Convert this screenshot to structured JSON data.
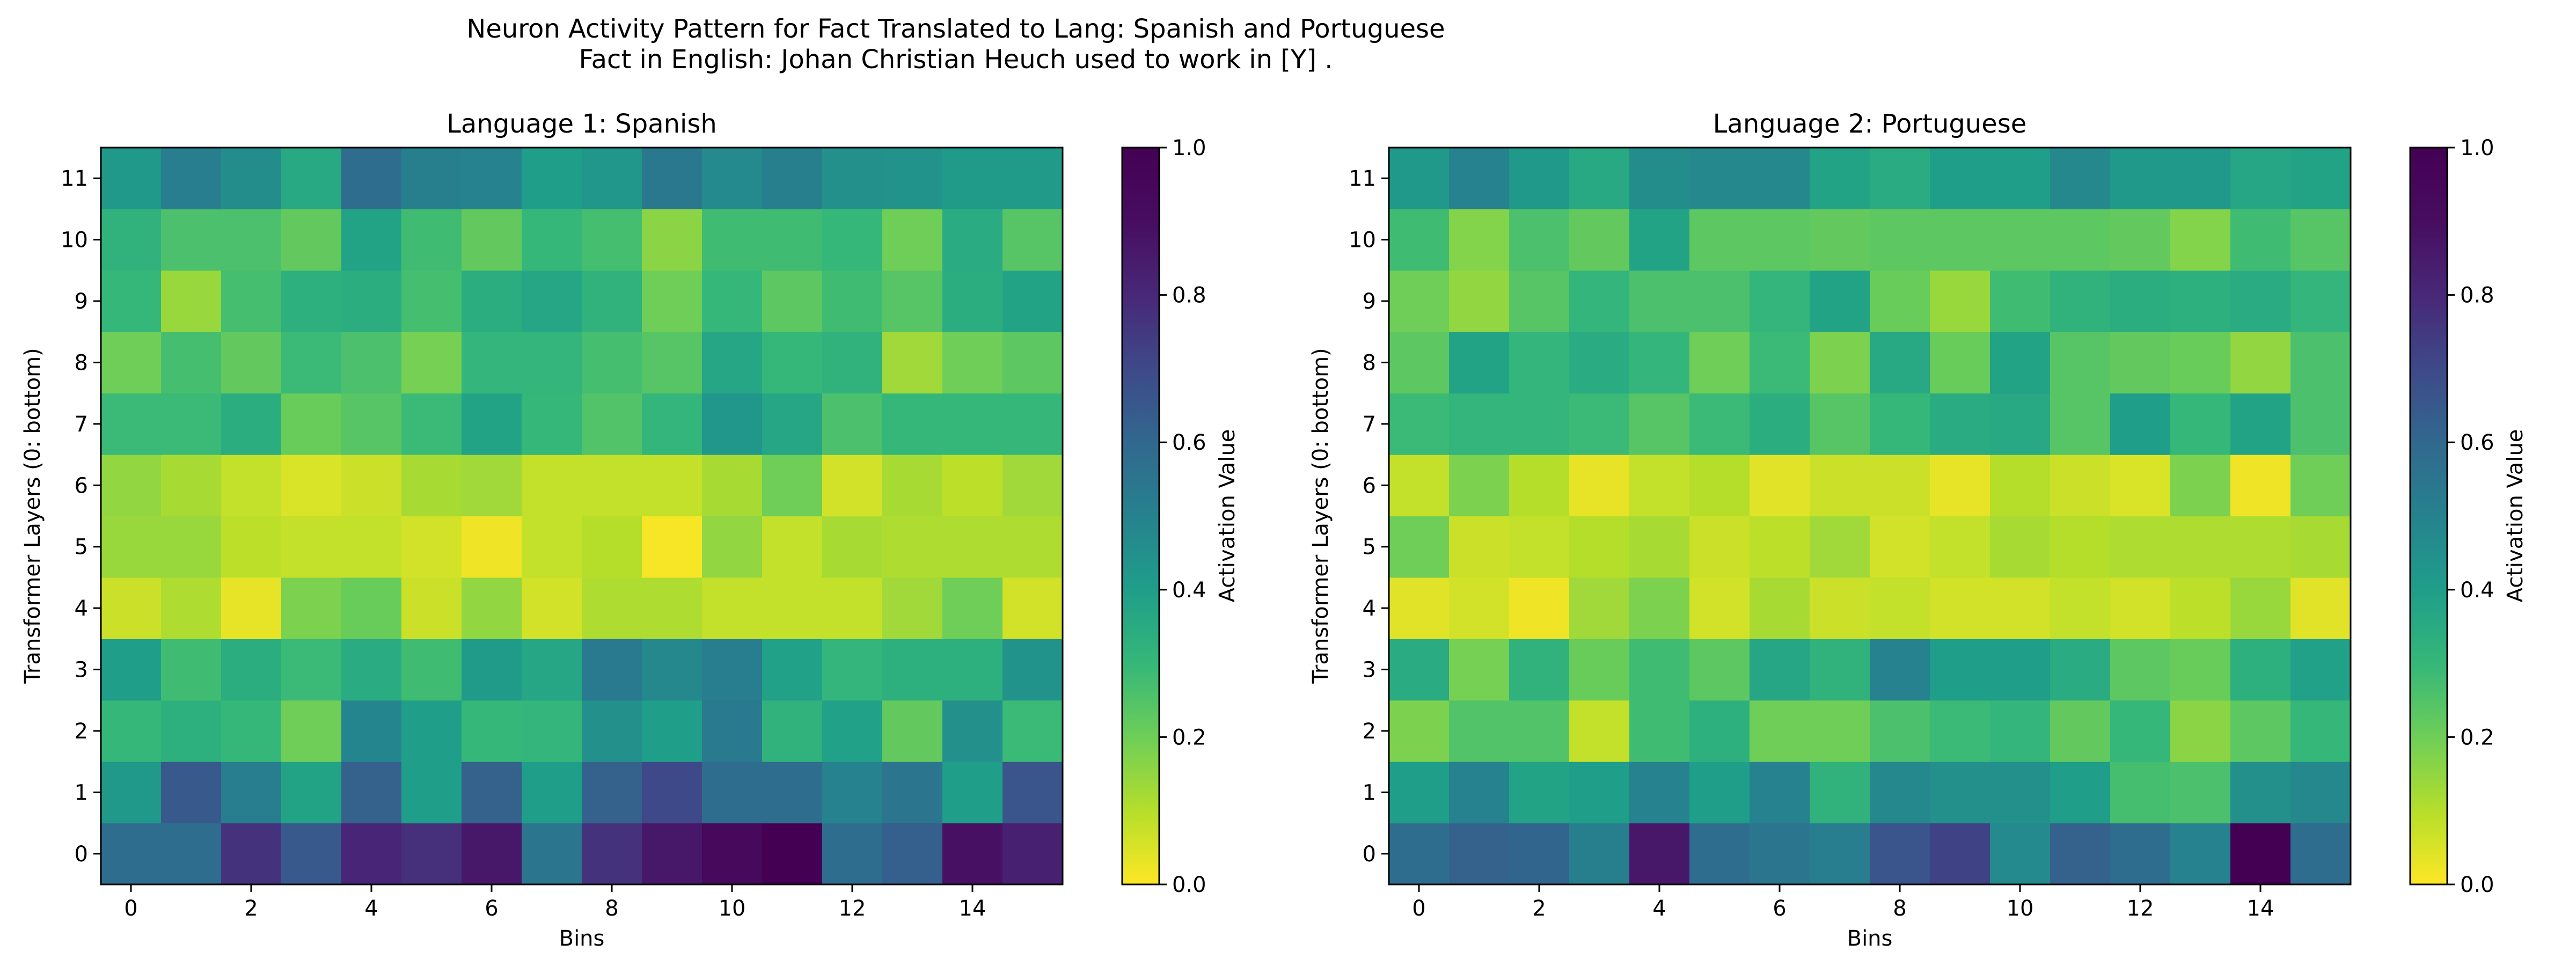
{
  "chart_data": {
    "type": "heatmap",
    "title_line1": "Neuron Activity Pattern for Fact Translated to Lang: Spanish and Portuguese",
    "title_line2": "Fact in English: Johan Christian Heuch used to work in [Y] .",
    "colormap": "viridis_r",
    "colorbar_label": "Activation Value",
    "colorbar_ticks": [
      "0.0",
      "0.2",
      "0.4",
      "0.6",
      "0.8",
      "1.0"
    ],
    "vmin": 0.0,
    "vmax": 1.0,
    "x_tick_labels": [
      "0",
      "2",
      "4",
      "6",
      "8",
      "10",
      "12",
      "14"
    ],
    "x_tick_values": [
      0,
      2,
      4,
      6,
      8,
      10,
      12,
      14
    ],
    "y_tick_labels": [
      "0",
      "1",
      "2",
      "3",
      "4",
      "5",
      "6",
      "7",
      "8",
      "9",
      "10",
      "11"
    ],
    "panels": [
      {
        "title": "Language 1: Spanish",
        "xlabel": "Bins",
        "ylabel": "Transformer Layers (0: bottom)",
        "values": [
          [
            0.58,
            0.58,
            0.77,
            0.65,
            0.81,
            0.78,
            0.86,
            0.55,
            0.77,
            0.86,
            0.93,
            1.0,
            0.58,
            0.63,
            0.89,
            0.83
          ],
          [
            0.42,
            0.65,
            0.52,
            0.38,
            0.62,
            0.4,
            0.62,
            0.4,
            0.62,
            0.7,
            0.58,
            0.58,
            0.5,
            0.55,
            0.4,
            0.66
          ],
          [
            0.3,
            0.33,
            0.3,
            0.2,
            0.49,
            0.4,
            0.3,
            0.31,
            0.45,
            0.4,
            0.53,
            0.32,
            0.39,
            0.22,
            0.45,
            0.29
          ],
          [
            0.4,
            0.28,
            0.34,
            0.29,
            0.35,
            0.28,
            0.41,
            0.37,
            0.53,
            0.48,
            0.52,
            0.39,
            0.31,
            0.33,
            0.33,
            0.44
          ],
          [
            0.07,
            0.11,
            0.03,
            0.18,
            0.21,
            0.07,
            0.15,
            0.06,
            0.11,
            0.11,
            0.08,
            0.08,
            0.08,
            0.13,
            0.2,
            0.06
          ],
          [
            0.14,
            0.14,
            0.09,
            0.08,
            0.08,
            0.06,
            0.02,
            0.08,
            0.1,
            0.01,
            0.15,
            0.08,
            0.12,
            0.11,
            0.11,
            0.11
          ],
          [
            0.15,
            0.12,
            0.08,
            0.05,
            0.07,
            0.12,
            0.13,
            0.08,
            0.08,
            0.08,
            0.12,
            0.2,
            0.06,
            0.12,
            0.09,
            0.13
          ],
          [
            0.29,
            0.29,
            0.34,
            0.21,
            0.24,
            0.29,
            0.38,
            0.3,
            0.25,
            0.31,
            0.43,
            0.37,
            0.26,
            0.3,
            0.3,
            0.3
          ],
          [
            0.2,
            0.27,
            0.22,
            0.29,
            0.26,
            0.19,
            0.31,
            0.31,
            0.27,
            0.24,
            0.37,
            0.3,
            0.32,
            0.13,
            0.2,
            0.23
          ],
          [
            0.3,
            0.14,
            0.27,
            0.33,
            0.34,
            0.27,
            0.34,
            0.37,
            0.32,
            0.2,
            0.3,
            0.23,
            0.28,
            0.24,
            0.34,
            0.38
          ],
          [
            0.32,
            0.26,
            0.26,
            0.22,
            0.38,
            0.28,
            0.22,
            0.3,
            0.27,
            0.16,
            0.28,
            0.28,
            0.3,
            0.2,
            0.35,
            0.24
          ],
          [
            0.42,
            0.52,
            0.46,
            0.36,
            0.58,
            0.51,
            0.5,
            0.4,
            0.43,
            0.54,
            0.47,
            0.51,
            0.45,
            0.44,
            0.41,
            0.41
          ]
        ]
      },
      {
        "title": "Language 2: Portuguese",
        "xlabel": "Bins",
        "ylabel": "Transformer Layers (0: bottom)",
        "values": [
          [
            0.58,
            0.62,
            0.61,
            0.51,
            0.86,
            0.58,
            0.55,
            0.52,
            0.66,
            0.72,
            0.47,
            0.62,
            0.58,
            0.5,
            1.0,
            0.58
          ],
          [
            0.4,
            0.5,
            0.38,
            0.4,
            0.5,
            0.4,
            0.5,
            0.32,
            0.48,
            0.45,
            0.45,
            0.4,
            0.27,
            0.26,
            0.45,
            0.48
          ],
          [
            0.18,
            0.25,
            0.25,
            0.08,
            0.28,
            0.33,
            0.2,
            0.2,
            0.26,
            0.29,
            0.31,
            0.22,
            0.3,
            0.16,
            0.23,
            0.3
          ],
          [
            0.35,
            0.19,
            0.32,
            0.21,
            0.28,
            0.23,
            0.37,
            0.32,
            0.5,
            0.4,
            0.4,
            0.35,
            0.23,
            0.21,
            0.33,
            0.39
          ],
          [
            0.04,
            0.06,
            0.02,
            0.13,
            0.18,
            0.06,
            0.12,
            0.07,
            0.08,
            0.06,
            0.06,
            0.08,
            0.06,
            0.09,
            0.14,
            0.04
          ],
          [
            0.2,
            0.07,
            0.08,
            0.1,
            0.12,
            0.07,
            0.09,
            0.13,
            0.06,
            0.08,
            0.12,
            0.1,
            0.11,
            0.11,
            0.11,
            0.12
          ],
          [
            0.08,
            0.18,
            0.1,
            0.03,
            0.08,
            0.1,
            0.04,
            0.07,
            0.07,
            0.03,
            0.1,
            0.07,
            0.05,
            0.18,
            0.02,
            0.2
          ],
          [
            0.29,
            0.31,
            0.31,
            0.29,
            0.24,
            0.29,
            0.34,
            0.24,
            0.3,
            0.35,
            0.36,
            0.24,
            0.4,
            0.3,
            0.38,
            0.26
          ],
          [
            0.23,
            0.38,
            0.31,
            0.35,
            0.31,
            0.2,
            0.29,
            0.18,
            0.36,
            0.21,
            0.38,
            0.24,
            0.22,
            0.21,
            0.15,
            0.26
          ],
          [
            0.2,
            0.15,
            0.24,
            0.31,
            0.26,
            0.26,
            0.31,
            0.38,
            0.21,
            0.14,
            0.28,
            0.32,
            0.34,
            0.33,
            0.35,
            0.31
          ],
          [
            0.28,
            0.17,
            0.26,
            0.22,
            0.38,
            0.23,
            0.23,
            0.22,
            0.23,
            0.23,
            0.23,
            0.23,
            0.22,
            0.17,
            0.28,
            0.24
          ],
          [
            0.42,
            0.5,
            0.42,
            0.36,
            0.46,
            0.48,
            0.48,
            0.38,
            0.35,
            0.4,
            0.4,
            0.48,
            0.42,
            0.42,
            0.37,
            0.38
          ]
        ]
      }
    ]
  }
}
